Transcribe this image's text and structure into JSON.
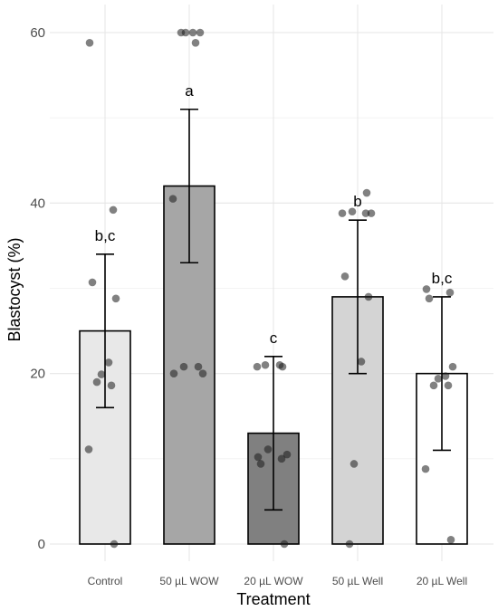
{
  "chart_data": {
    "type": "bar",
    "xlabel": "Treatment",
    "ylabel": "Blastocyst (%)",
    "ylim": [
      0,
      61.5
    ],
    "yticks": [
      0,
      20,
      40,
      60
    ],
    "grid": true,
    "categories": [
      "Control",
      "50 µL WOW",
      "20 µL WOW",
      "50 µL Well",
      "20 µL Well"
    ],
    "values": [
      25.0,
      42.0,
      13.0,
      29.0,
      20.0
    ],
    "error_low": [
      16.0,
      33.0,
      4.0,
      20.0,
      11.0
    ],
    "error_high": [
      34.0,
      51.0,
      22.0,
      38.0,
      29.0
    ],
    "significance_labels": [
      "b,c",
      "a",
      "c",
      "b",
      "b,c"
    ],
    "bar_colors": [
      "#e8e8e8",
      "#a6a6a6",
      "#808080",
      "#d4d4d4",
      "#ffffff"
    ],
    "points": [
      [
        58.8,
        39.2,
        30.7,
        28.8,
        21.3,
        19.9,
        19.0,
        18.6,
        11.1,
        0.0
      ],
      [
        60.0,
        60.0,
        60.0,
        60.0,
        58.8,
        40.5,
        20.8,
        20.8,
        20.0,
        20.0
      ],
      [
        21.0,
        21.0,
        20.8,
        20.8,
        11.1,
        10.5,
        10.2,
        10.0,
        9.4,
        0.0
      ],
      [
        41.2,
        39.0,
        38.8,
        38.8,
        38.8,
        31.4,
        29.0,
        21.4,
        9.4,
        0.0
      ],
      [
        29.9,
        29.5,
        28.8,
        20.8,
        19.7,
        19.4,
        18.6,
        18.6,
        8.8,
        0.5
      ]
    ]
  }
}
